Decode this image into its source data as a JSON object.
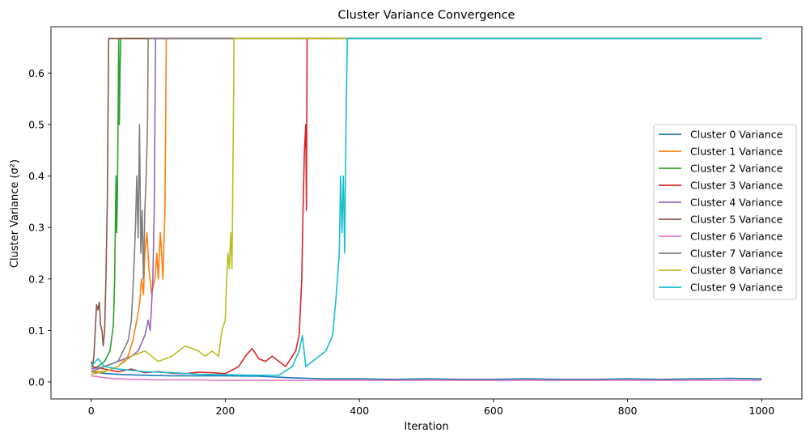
{
  "chart_data": {
    "type": "line",
    "title": "Cluster Variance Convergence",
    "xlabel": "Iteration",
    "ylabel": "Cluster Variance (σ²)",
    "xlim": [
      -60,
      1060
    ],
    "ylim": [
      -0.033,
      0.69
    ],
    "xticks": [
      0,
      200,
      400,
      600,
      800,
      1000
    ],
    "yticks": [
      0.0,
      0.1,
      0.2,
      0.3,
      0.4,
      0.5,
      0.6
    ],
    "grid": false,
    "legend_position": "center-right",
    "series": [
      {
        "name": "Cluster 0 Variance",
        "color": "#1f77b4",
        "x": [
          0,
          10,
          25,
          50,
          80,
          120,
          160,
          200,
          250,
          300,
          350,
          400,
          450,
          500,
          550,
          600,
          650,
          700,
          750,
          800,
          850,
          900,
          950,
          1000
        ],
        "y": [
          0.02,
          0.018,
          0.016,
          0.014,
          0.013,
          0.012,
          0.012,
          0.012,
          0.011,
          0.008,
          0.006,
          0.006,
          0.005,
          0.006,
          0.005,
          0.005,
          0.006,
          0.005,
          0.005,
          0.006,
          0.005,
          0.006,
          0.007,
          0.006
        ]
      },
      {
        "name": "Cluster 1 Variance",
        "color": "#ff7f0e",
        "x": [
          0,
          20,
          40,
          55,
          62,
          68,
          72,
          75,
          78,
          80,
          83,
          86,
          90,
          95,
          98,
          100,
          103,
          105,
          107,
          108,
          110,
          111,
          112,
          1000
        ],
        "y": [
          0.02,
          0.02,
          0.03,
          0.05,
          0.08,
          0.12,
          0.15,
          0.2,
          0.17,
          0.25,
          0.29,
          0.22,
          0.17,
          0.2,
          0.25,
          0.2,
          0.29,
          0.25,
          0.2,
          0.25,
          0.333,
          0.5,
          0.667,
          0.667
        ]
      },
      {
        "name": "Cluster 2 Variance",
        "color": "#2ca02c",
        "x": [
          0,
          10,
          20,
          28,
          31,
          33,
          35,
          36,
          37,
          38,
          39,
          40,
          41,
          42,
          43,
          44,
          45,
          1000
        ],
        "y": [
          0.025,
          0.03,
          0.04,
          0.06,
          0.09,
          0.11,
          0.2,
          0.3,
          0.4,
          0.29,
          0.35,
          0.5,
          0.667,
          0.5,
          0.6,
          0.667,
          0.667,
          0.667
        ]
      },
      {
        "name": "Cluster 3 Variance",
        "color": "#d62728",
        "x": [
          0,
          20,
          40,
          60,
          80,
          100,
          120,
          140,
          160,
          180,
          200,
          220,
          230,
          240,
          250,
          260,
          270,
          280,
          290,
          300,
          305,
          310,
          312,
          314,
          316,
          318,
          320,
          321,
          322,
          1000
        ],
        "y": [
          0.03,
          0.025,
          0.02,
          0.025,
          0.018,
          0.02,
          0.017,
          0.016,
          0.019,
          0.018,
          0.016,
          0.03,
          0.05,
          0.065,
          0.045,
          0.04,
          0.05,
          0.04,
          0.03,
          0.05,
          0.06,
          0.09,
          0.14,
          0.2,
          0.333,
          0.45,
          0.5,
          0.333,
          0.667,
          0.667
        ]
      },
      {
        "name": "Cluster 4 Variance",
        "color": "#9467bd",
        "x": [
          0,
          20,
          40,
          60,
          70,
          80,
          85,
          88,
          90,
          92,
          94,
          95,
          96,
          98,
          1000
        ],
        "y": [
          0.025,
          0.03,
          0.04,
          0.05,
          0.06,
          0.09,
          0.12,
          0.1,
          0.15,
          0.2,
          0.333,
          0.5,
          0.667,
          0.667,
          0.667
        ]
      },
      {
        "name": "Cluster 5 Variance",
        "color": "#8c564b",
        "x": [
          0,
          2,
          4,
          6,
          8,
          10,
          12,
          14,
          16,
          18,
          20,
          22,
          24,
          25,
          26,
          27,
          1000
        ],
        "y": [
          0.04,
          0.03,
          0.05,
          0.1,
          0.15,
          0.14,
          0.155,
          0.11,
          0.1,
          0.07,
          0.1,
          0.2,
          0.35,
          0.5,
          0.667,
          0.667,
          0.667
        ]
      },
      {
        "name": "Cluster 6 Variance",
        "color": "#e377c2",
        "x": [
          0,
          10,
          20,
          40,
          60,
          100,
          150,
          200,
          300,
          400,
          500,
          600,
          700,
          800,
          900,
          1000
        ],
        "y": [
          0.012,
          0.01,
          0.008,
          0.006,
          0.005,
          0.004,
          0.004,
          0.003,
          0.003,
          0.003,
          0.003,
          0.003,
          0.003,
          0.003,
          0.003,
          0.003
        ]
      },
      {
        "name": "Cluster 7 Variance",
        "color": "#7f7f7f",
        "x": [
          0,
          20,
          40,
          55,
          60,
          63,
          66,
          68,
          70,
          72,
          74,
          76,
          78,
          80,
          82,
          84,
          85,
          86,
          1000
        ],
        "y": [
          0.02,
          0.03,
          0.04,
          0.08,
          0.12,
          0.2,
          0.3,
          0.4,
          0.28,
          0.5,
          0.25,
          0.333,
          0.2,
          0.333,
          0.4,
          0.5,
          0.667,
          0.667,
          0.667
        ]
      },
      {
        "name": "Cluster 8 Variance",
        "color": "#bcbd22",
        "x": [
          0,
          20,
          40,
          60,
          80,
          100,
          120,
          140,
          160,
          170,
          180,
          190,
          195,
          200,
          202,
          204,
          206,
          208,
          210,
          212,
          213,
          1000
        ],
        "y": [
          0.015,
          0.02,
          0.03,
          0.05,
          0.06,
          0.04,
          0.05,
          0.07,
          0.06,
          0.05,
          0.06,
          0.05,
          0.1,
          0.12,
          0.2,
          0.25,
          0.22,
          0.29,
          0.22,
          0.5,
          0.667,
          0.667
        ]
      },
      {
        "name": "Cluster 9 Variance",
        "color": "#17becf",
        "x": [
          0,
          10,
          20,
          40,
          80,
          120,
          160,
          200,
          240,
          280,
          300,
          310,
          315,
          320,
          330,
          340,
          350,
          360,
          365,
          370,
          372,
          374,
          376,
          378,
          380,
          382,
          1000
        ],
        "y": [
          0.03,
          0.045,
          0.03,
          0.025,
          0.02,
          0.018,
          0.015,
          0.014,
          0.013,
          0.013,
          0.03,
          0.06,
          0.09,
          0.03,
          0.04,
          0.05,
          0.06,
          0.09,
          0.16,
          0.25,
          0.4,
          0.29,
          0.4,
          0.25,
          0.5,
          0.667,
          0.667
        ]
      }
    ]
  }
}
